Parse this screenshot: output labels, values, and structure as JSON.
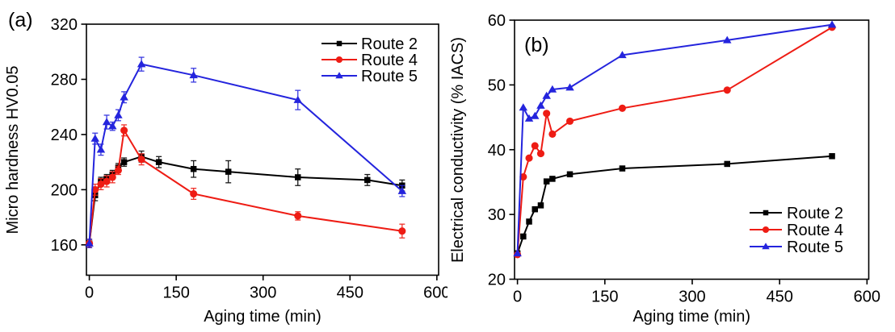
{
  "figure": {
    "background": "#ffffff",
    "frame_color": "#000000"
  },
  "chart_data": [
    {
      "type": "line",
      "panel_label": "(a)",
      "xlabel": "Aging time (min)",
      "ylabel": "Micro hardness HV0.05",
      "xlim": [
        -5,
        603
      ],
      "ylim": [
        138,
        320
      ],
      "xticks": [
        0,
        150,
        300,
        450,
        600
      ],
      "yticks": [
        160,
        200,
        240,
        280,
        320
      ],
      "grid": false,
      "legend_position": "top-right",
      "legend_labels": [
        "Route 2",
        "Route 4",
        "Route 5"
      ],
      "series": [
        {
          "name": "Route 2",
          "color": "#000000",
          "marker": "square",
          "x": [
            0,
            10,
            20,
            30,
            40,
            50,
            60,
            90,
            120,
            180,
            240,
            360,
            480,
            540
          ],
          "y": [
            161,
            196,
            206,
            208,
            211,
            216,
            220,
            224,
            220,
            215,
            213,
            209,
            207,
            203
          ],
          "yerr": [
            3,
            4,
            3,
            3,
            3,
            3,
            3,
            4,
            4,
            6,
            8,
            6,
            4,
            4
          ]
        },
        {
          "name": "Route 4",
          "color": "#ee1c14",
          "marker": "circle",
          "x": [
            0,
            10,
            20,
            30,
            40,
            50,
            60,
            90,
            180,
            360,
            540
          ],
          "y": [
            161,
            200,
            204,
            206,
            209,
            214,
            243,
            222,
            197,
            181,
            170
          ],
          "yerr": [
            3,
            4,
            4,
            4,
            4,
            3,
            4,
            4,
            4,
            3,
            5
          ]
        },
        {
          "name": "Route 5",
          "color": "#2424dd",
          "marker": "triangle",
          "x": [
            0,
            10,
            20,
            30,
            40,
            50,
            60,
            90,
            180,
            360,
            540
          ],
          "y": [
            161,
            237,
            229,
            249,
            246,
            254,
            267,
            291,
            283,
            265,
            199
          ],
          "yerr": [
            3,
            4,
            4,
            5,
            3,
            4,
            4,
            5,
            5,
            7,
            4
          ]
        }
      ]
    },
    {
      "type": "line",
      "panel_label": "(b)",
      "xlabel": "Aging time (min)",
      "ylabel": "Electrical conductivity (% IACS)",
      "xlim": [
        -5,
        603
      ],
      "ylim": [
        20,
        60
      ],
      "xticks": [
        0,
        150,
        300,
        450,
        600
      ],
      "yticks": [
        20,
        30,
        40,
        50,
        60
      ],
      "grid": false,
      "legend_position": "bottom-right",
      "legend_labels": [
        "Route 2",
        "Route 4",
        "Route 5"
      ],
      "series": [
        {
          "name": "Route 2",
          "color": "#000000",
          "marker": "square",
          "x": [
            0,
            10,
            20,
            30,
            40,
            50,
            60,
            90,
            180,
            360,
            540
          ],
          "y": [
            24,
            26.6,
            28.9,
            30.8,
            31.4,
            35.1,
            35.5,
            36.2,
            37.1,
            37.8,
            39
          ]
        },
        {
          "name": "Route 4",
          "color": "#ee1c14",
          "marker": "circle",
          "x": [
            0,
            10,
            20,
            30,
            40,
            50,
            60,
            90,
            180,
            360,
            540
          ],
          "y": [
            23.8,
            35.8,
            38.7,
            40.6,
            39.4,
            45.6,
            42.4,
            44.4,
            46.4,
            49.2,
            58.9
          ]
        },
        {
          "name": "Route 5",
          "color": "#2424dd",
          "marker": "triangle",
          "x": [
            0,
            10,
            20,
            30,
            40,
            50,
            60,
            90,
            180,
            360,
            540
          ],
          "y": [
            24,
            46.5,
            44.8,
            45.2,
            46.8,
            48.3,
            49.3,
            49.6,
            54.6,
            56.9,
            59.3
          ]
        }
      ]
    }
  ]
}
